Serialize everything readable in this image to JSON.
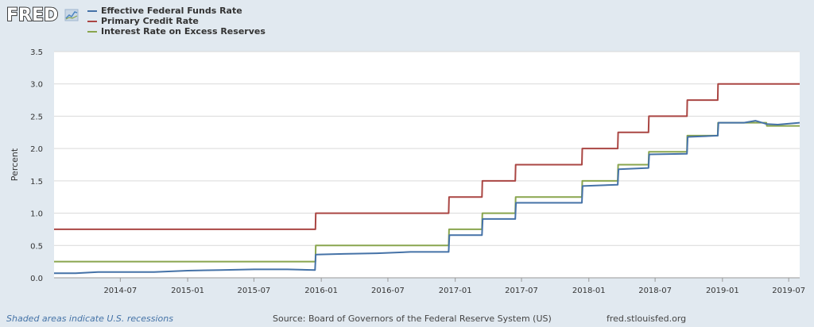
{
  "logo": {
    "text": "FRED"
  },
  "footer": {
    "recession_note": "Shaded areas indicate U.S. recessions",
    "source": "Source: Board of Governors of the Federal Reserve System (US)",
    "url": "fred.stlouisfed.org"
  },
  "colors": {
    "background": "#e1e9f0",
    "plot": "#ffffff",
    "grid": "#d9d9d9",
    "effr": "#4572a7",
    "pcr": "#aa4643",
    "iorr": "#89a54e"
  },
  "chart_data": {
    "type": "line",
    "title": "",
    "xlabel": "",
    "ylabel": "Percent",
    "xlim": [
      "2014-01-01",
      "2019-07-31"
    ],
    "ylim": [
      0,
      3.5
    ],
    "yticks": [
      "0.0",
      "0.5",
      "1.0",
      "1.5",
      "2.0",
      "2.5",
      "3.0",
      "3.5"
    ],
    "xticks": [
      "2014-07",
      "2015-01",
      "2015-07",
      "2016-01",
      "2016-07",
      "2017-01",
      "2017-07",
      "2018-01",
      "2018-07",
      "2019-01",
      "2019-07"
    ],
    "grid": true,
    "legend": "top-left",
    "series": [
      {
        "name": "Effective Federal Funds Rate",
        "color": "#4572a7",
        "points": [
          [
            "2014-01-01",
            0.07
          ],
          [
            "2014-03-01",
            0.07
          ],
          [
            "2014-05-01",
            0.09
          ],
          [
            "2014-07-01",
            0.09
          ],
          [
            "2014-10-01",
            0.09
          ],
          [
            "2015-01-01",
            0.11
          ],
          [
            "2015-04-01",
            0.12
          ],
          [
            "2015-07-01",
            0.13
          ],
          [
            "2015-10-01",
            0.13
          ],
          [
            "2015-12-15",
            0.12
          ],
          [
            "2015-12-17",
            0.36
          ],
          [
            "2016-03-01",
            0.37
          ],
          [
            "2016-06-01",
            0.38
          ],
          [
            "2016-09-01",
            0.4
          ],
          [
            "2016-12-14",
            0.4
          ],
          [
            "2016-12-16",
            0.66
          ],
          [
            "2017-03-15",
            0.66
          ],
          [
            "2017-03-17",
            0.91
          ],
          [
            "2017-06-14",
            0.91
          ],
          [
            "2017-06-16",
            1.16
          ],
          [
            "2017-12-13",
            1.16
          ],
          [
            "2017-12-15",
            1.42
          ],
          [
            "2018-03-21",
            1.44
          ],
          [
            "2018-03-23",
            1.68
          ],
          [
            "2018-06-13",
            1.7
          ],
          [
            "2018-06-15",
            1.91
          ],
          [
            "2018-09-26",
            1.92
          ],
          [
            "2018-09-28",
            2.18
          ],
          [
            "2018-12-19",
            2.2
          ],
          [
            "2018-12-21",
            2.4
          ],
          [
            "2019-03-01",
            2.4
          ],
          [
            "2019-04-01",
            2.43
          ],
          [
            "2019-05-01",
            2.38
          ],
          [
            "2019-06-01",
            2.37
          ],
          [
            "2019-07-31",
            2.4
          ]
        ]
      },
      {
        "name": "Primary Credit Rate",
        "color": "#aa4643",
        "points": [
          [
            "2014-01-01",
            0.75
          ],
          [
            "2015-12-16",
            0.75
          ],
          [
            "2015-12-17",
            1.0
          ],
          [
            "2016-12-14",
            1.0
          ],
          [
            "2016-12-15",
            1.25
          ],
          [
            "2017-03-15",
            1.25
          ],
          [
            "2017-03-16",
            1.5
          ],
          [
            "2017-06-14",
            1.5
          ],
          [
            "2017-06-15",
            1.75
          ],
          [
            "2017-12-13",
            1.75
          ],
          [
            "2017-12-14",
            2.0
          ],
          [
            "2018-03-21",
            2.0
          ],
          [
            "2018-03-22",
            2.25
          ],
          [
            "2018-06-13",
            2.25
          ],
          [
            "2018-06-14",
            2.5
          ],
          [
            "2018-09-26",
            2.5
          ],
          [
            "2018-09-27",
            2.75
          ],
          [
            "2018-12-19",
            2.75
          ],
          [
            "2018-12-20",
            3.0
          ],
          [
            "2019-07-31",
            3.0
          ]
        ]
      },
      {
        "name": "Interest Rate on Excess Reserves",
        "color": "#89a54e",
        "points": [
          [
            "2014-01-01",
            0.25
          ],
          [
            "2015-12-16",
            0.25
          ],
          [
            "2015-12-17",
            0.5
          ],
          [
            "2016-12-14",
            0.5
          ],
          [
            "2016-12-15",
            0.75
          ],
          [
            "2017-03-15",
            0.75
          ],
          [
            "2017-03-16",
            1.0
          ],
          [
            "2017-06-14",
            1.0
          ],
          [
            "2017-06-15",
            1.25
          ],
          [
            "2017-12-13",
            1.25
          ],
          [
            "2017-12-14",
            1.5
          ],
          [
            "2018-03-21",
            1.5
          ],
          [
            "2018-03-22",
            1.75
          ],
          [
            "2018-06-13",
            1.75
          ],
          [
            "2018-06-14",
            1.95
          ],
          [
            "2018-09-26",
            1.95
          ],
          [
            "2018-09-27",
            2.2
          ],
          [
            "2018-12-19",
            2.2
          ],
          [
            "2018-12-20",
            2.4
          ],
          [
            "2019-05-01",
            2.4
          ],
          [
            "2019-05-02",
            2.35
          ],
          [
            "2019-07-31",
            2.35
          ]
        ]
      }
    ]
  }
}
